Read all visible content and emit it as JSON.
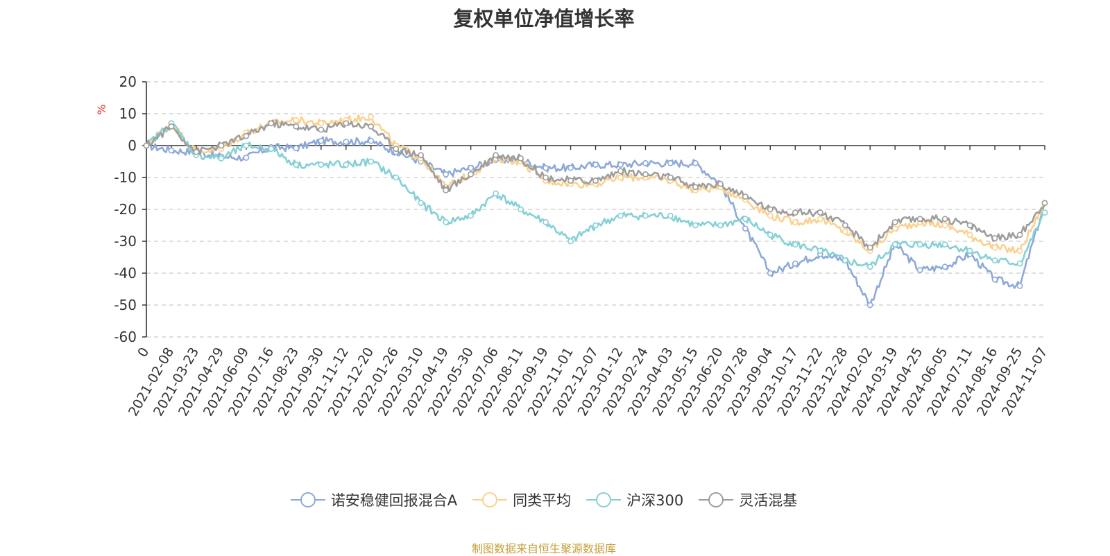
{
  "chart_data": {
    "type": "line",
    "title": "复权单位净值增长率",
    "ylabel": "%",
    "ylim": [
      -60,
      20
    ],
    "yticks": [
      20,
      10,
      0,
      -10,
      -20,
      -30,
      -40,
      -50,
      -60
    ],
    "grid": true,
    "legend_position": "bottom",
    "categories": [
      "0",
      "2021-02-08",
      "2021-03-23",
      "2021-04-29",
      "2021-06-09",
      "2021-07-16",
      "2021-08-23",
      "2021-09-30",
      "2021-11-12",
      "2021-12-20",
      "2022-01-26",
      "2022-03-10",
      "2022-04-19",
      "2022-05-30",
      "2022-07-06",
      "2022-08-11",
      "2022-09-19",
      "2022-11-01",
      "2022-12-07",
      "2023-01-12",
      "2023-02-24",
      "2023-04-03",
      "2023-05-15",
      "2023-06-20",
      "2023-07-28",
      "2023-09-04",
      "2023-10-17",
      "2023-11-22",
      "2023-12-28",
      "2024-02-02",
      "2024-03-19",
      "2024-04-25",
      "2024-06-05",
      "2024-07-11",
      "2024-08-16",
      "2024-09-25",
      "2024-11-07"
    ],
    "series": [
      {
        "name": "诺安稳健回报混合A",
        "color": "#8da9d8",
        "values": [
          0,
          -1.5,
          -2,
          -3.5,
          -3.8,
          -0.5,
          -0.8,
          1.5,
          1.2,
          1.5,
          -2,
          -5,
          -9,
          -7,
          -4.5,
          -4.5,
          -7,
          -7,
          -6,
          -6,
          -5.5,
          -5.5,
          -5.5,
          -12,
          -26,
          -40,
          -37,
          -34,
          -36,
          -50,
          -31,
          -39,
          -38,
          -34,
          -42,
          -44,
          -18
        ]
      },
      {
        "name": "同类平均",
        "color": "#fad18e",
        "values": [
          0,
          7,
          -2,
          -1,
          4,
          7,
          8,
          7,
          8,
          9,
          0,
          -4,
          -13,
          -9,
          -4,
          -5,
          -11,
          -12,
          -12,
          -10,
          -10,
          -11,
          -14,
          -13,
          -17,
          -22,
          -24,
          -23,
          -27,
          -33,
          -26,
          -24,
          -25,
          -28,
          -32,
          -33,
          -18
        ]
      },
      {
        "name": "沪深300",
        "color": "#85d0d6",
        "values": [
          0,
          7,
          -3,
          -4,
          0,
          -1,
          -6,
          -6,
          -6,
          -5,
          -10,
          -18,
          -24,
          -22,
          -15,
          -20,
          -24,
          -30,
          -25,
          -22,
          -22,
          -22,
          -25,
          -25,
          -23,
          -28,
          -31,
          -33,
          -36,
          -38,
          -31,
          -31,
          -31,
          -33,
          -36,
          -37,
          -21
        ]
      },
      {
        "name": "灵活混基",
        "color": "#9d9d9d",
        "values": [
          0,
          6,
          -2,
          0,
          3,
          7,
          6,
          5,
          7,
          6,
          -1,
          -3,
          -14,
          -9,
          -3,
          -4,
          -10,
          -11,
          -11,
          -8,
          -9,
          -10,
          -13,
          -12,
          -16,
          -20,
          -21,
          -21,
          -25,
          -32,
          -24,
          -23,
          -23,
          -25,
          -29,
          -28,
          -18
        ]
      }
    ]
  },
  "footer": {
    "source": "制图数据来自恒生聚源数据库"
  }
}
